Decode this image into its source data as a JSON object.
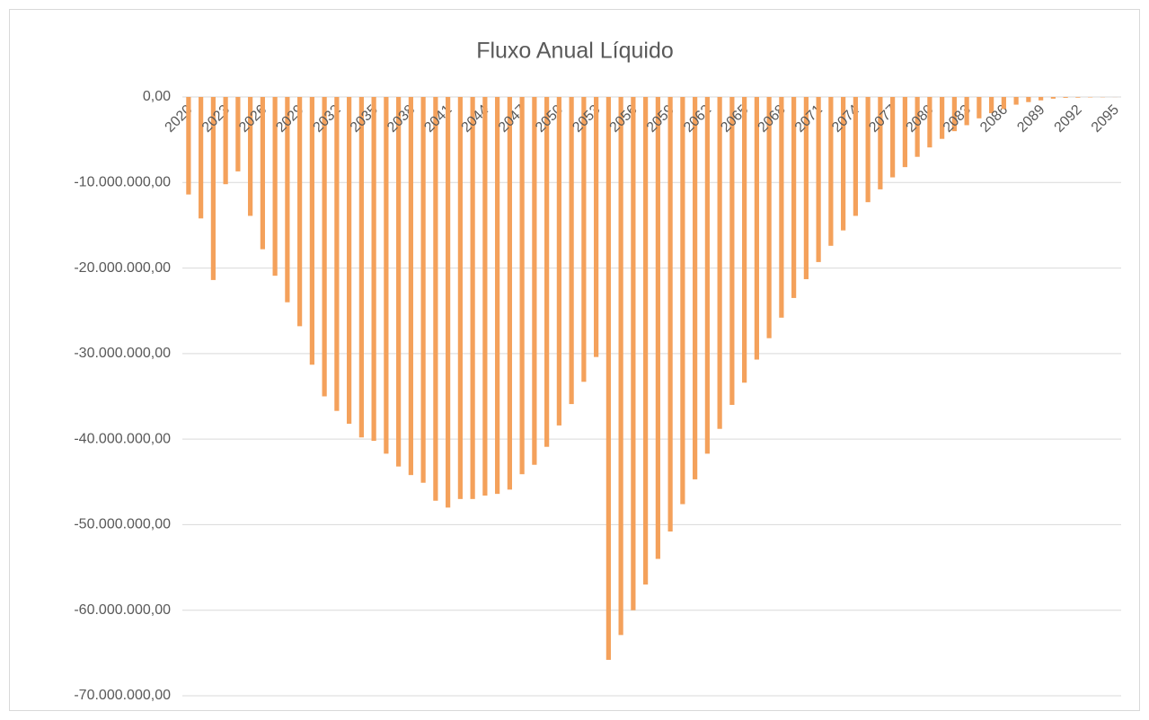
{
  "chart_data": {
    "type": "bar",
    "title": "Fluxo Anual Líquido",
    "categories": [
      "2020",
      null,
      null,
      "2023",
      null,
      null,
      "2026",
      null,
      null,
      "2029",
      null,
      null,
      "2032",
      null,
      null,
      "2035",
      null,
      null,
      "2038",
      null,
      null,
      "2041",
      null,
      null,
      "2044",
      null,
      null,
      "2047",
      null,
      null,
      "2050",
      null,
      null,
      "2053",
      null,
      null,
      "2056",
      null,
      null,
      "2059",
      null,
      null,
      "2062",
      null,
      null,
      "2065",
      null,
      null,
      "2068",
      null,
      null,
      "2071",
      null,
      null,
      "2074",
      null,
      null,
      "2077",
      null,
      null,
      "2080",
      null,
      null,
      "2083",
      null,
      null,
      "2086",
      null,
      null,
      "2089",
      null,
      null,
      "2092",
      null,
      null,
      "2095"
    ],
    "values": [
      -11400000,
      -14200000,
      -21400000,
      -10200000,
      -8700000,
      -13900000,
      -17800000,
      -20900000,
      -24000000,
      -26800000,
      -31300000,
      -35000000,
      -36700000,
      -38200000,
      -39800000,
      -40200000,
      -41700000,
      -43200000,
      -44200000,
      -45100000,
      -47200000,
      -48000000,
      -47000000,
      -47000000,
      -46600000,
      -46400000,
      -45900000,
      -44100000,
      -43000000,
      -40900000,
      -38400000,
      -35900000,
      -33300000,
      -30400000,
      -65800000,
      -62900000,
      -60000000,
      -57000000,
      -54000000,
      -50800000,
      -47600000,
      -44700000,
      -41700000,
      -38800000,
      -36000000,
      -33400000,
      -30700000,
      -28200000,
      -25800000,
      -23500000,
      -21300000,
      -19300000,
      -17400000,
      -15600000,
      -13900000,
      -12300000,
      -10800000,
      -9400000,
      -8200000,
      -7000000,
      -5900000,
      -4900000,
      -4000000,
      -3300000,
      -2500000,
      -1900000,
      -1400000,
      -900000,
      -600000,
      -400000,
      -200000,
      -100000,
      -80000,
      -50000,
      -30000,
      -10000
    ],
    "color": "#f4a15b",
    "ylim": [
      -70000000,
      0
    ],
    "yticks": [
      {
        "value": 0,
        "label": "0,00"
      },
      {
        "value": -10000000,
        "label": "-10.000.000,00"
      },
      {
        "value": -20000000,
        "label": "-20.000.000,00"
      },
      {
        "value": -30000000,
        "label": "-30.000.000,00"
      },
      {
        "value": -40000000,
        "label": "-40.000.000,00"
      },
      {
        "value": -50000000,
        "label": "-50.000.000,00"
      },
      {
        "value": -60000000,
        "label": "-60.000.000,00"
      },
      {
        "value": -70000000,
        "label": "-70.000.000,00"
      }
    ],
    "grid": true
  }
}
